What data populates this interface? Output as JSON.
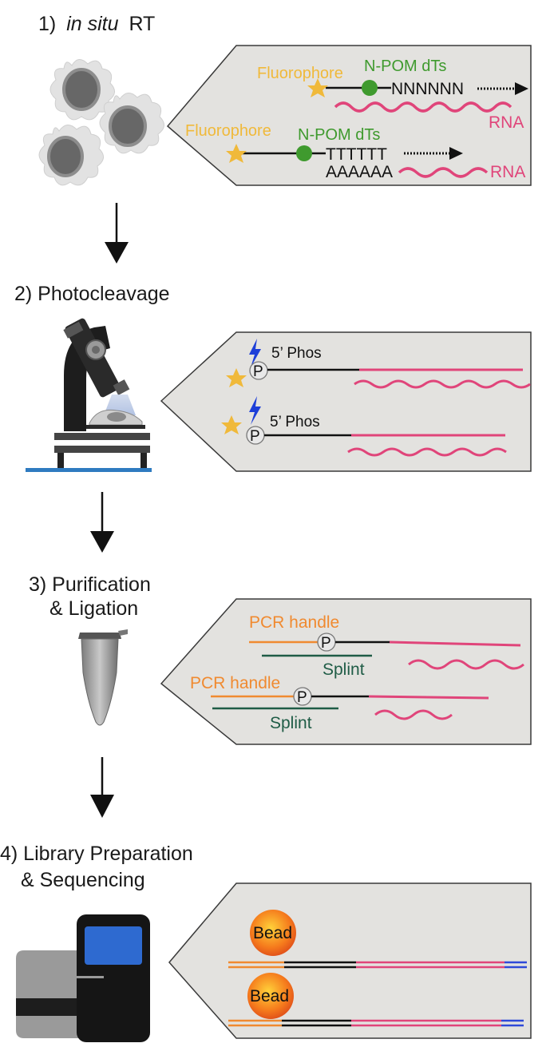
{
  "steps": [
    {
      "number": "1)",
      "title_italic": "in situ",
      "title_rest": "RT"
    },
    {
      "title": "2) Photocleavage"
    },
    {
      "title_line1": "3) Purification",
      "title_line2": "& Ligation"
    },
    {
      "title_line1": "4) Library Preparation",
      "title_line2": "& Sequencing"
    }
  ],
  "panel1": {
    "fluorophore": "Fluorophore",
    "npom": "N-POM dTs",
    "random_seq": "NNNNNN",
    "oligo_t": "TTTTTT",
    "poly_a": "AAAAAA",
    "rna": "RNA"
  },
  "panel2": {
    "phos": "5’ Phos",
    "p": "P"
  },
  "panel3": {
    "pcr_handle": "PCR handle",
    "splint": "Splint",
    "p": "P"
  },
  "panel4": {
    "bead": "Bead"
  },
  "colors": {
    "fluorophore": "#f0b93a",
    "npom": "#3f9a2e",
    "rna": "#e0457a",
    "pcr_handle": "#f08a30",
    "splint": "#1f5c46",
    "panel_bg": "#e3e2df",
    "uv_bolt": "#1d3fd8"
  }
}
